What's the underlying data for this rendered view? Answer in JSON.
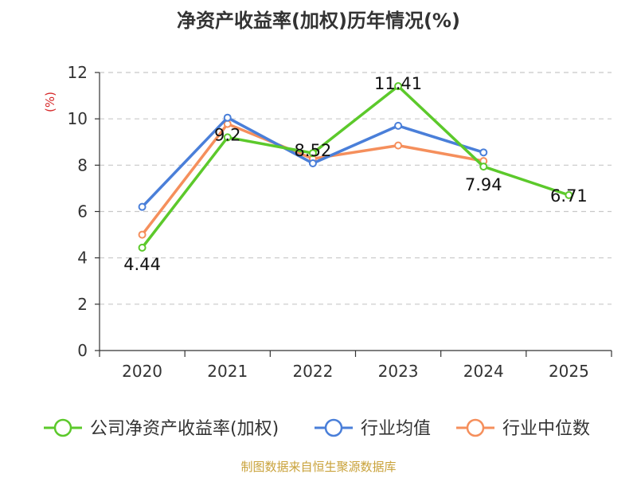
{
  "chart_data": {
    "type": "line",
    "title": "净资产收益率(加权)历年情况(%)",
    "unit_label": "(%)",
    "categories": [
      "2020",
      "2021",
      "2022",
      "2023",
      "2024",
      "2025"
    ],
    "ylim": [
      0,
      12
    ],
    "yticks": [
      0,
      2,
      4,
      6,
      8,
      10,
      12
    ],
    "grid": true,
    "legend_position": "bottom",
    "series": [
      {
        "name": "公司净资产收益率(加权)",
        "color": "#5cc92b",
        "values": [
          4.44,
          9.2,
          8.52,
          11.41,
          7.94,
          6.71
        ],
        "data_labels": [
          "4.44",
          "9.2",
          "8.52",
          "11.41",
          "7.94",
          "6.71"
        ]
      },
      {
        "name": "行业均值",
        "color": "#4a7fd9",
        "values": [
          6.2,
          10.05,
          8.08,
          9.7,
          8.55,
          null
        ]
      },
      {
        "name": "行业中位数",
        "color": "#f58f5c",
        "values": [
          5.0,
          9.78,
          8.28,
          8.85,
          8.18,
          null
        ]
      }
    ]
  },
  "source_note": "制图数据来自恒生聚源数据库"
}
